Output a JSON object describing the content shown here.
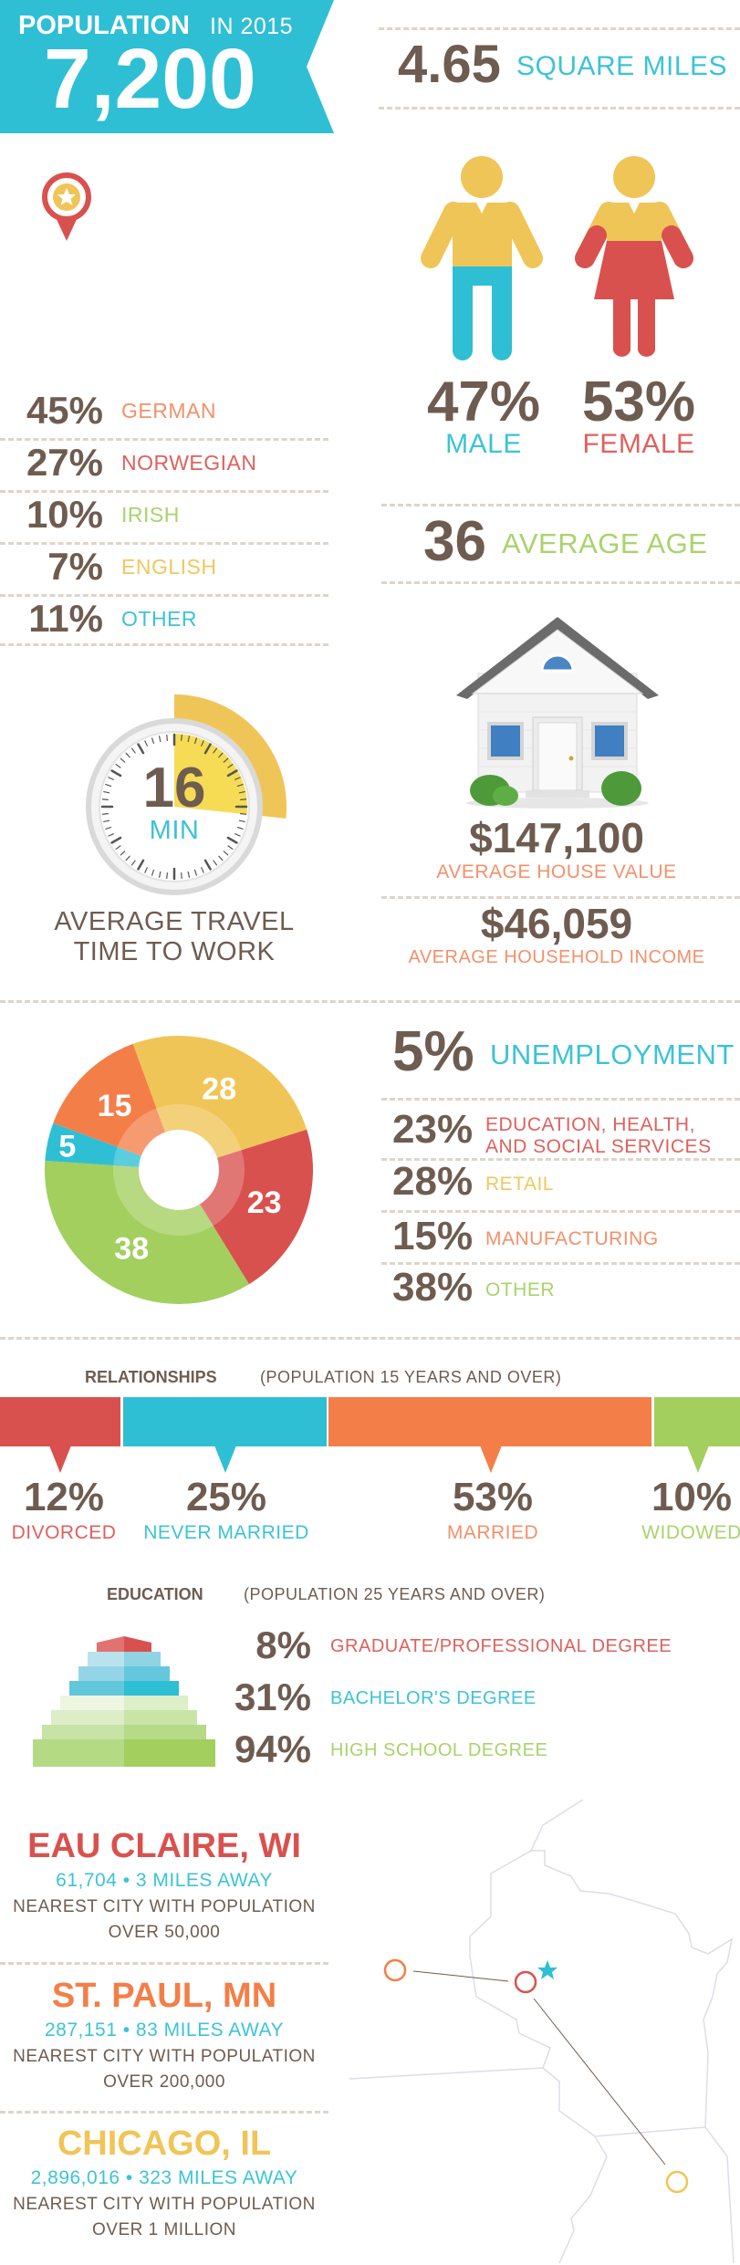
{
  "colors": {
    "cyan": "#2ebfd4",
    "red": "#d9514e",
    "orange": "#f47e48",
    "yellow": "#f0c557",
    "green": "#a2cf5e",
    "brown": "#6e5c50"
  },
  "header": {
    "population_label": "POPULATION",
    "year_label": "IN 2015",
    "population": "7,200"
  },
  "area": {
    "value": "4.65",
    "unit": "SQUARE MILES"
  },
  "gender": {
    "male_pct": "47%",
    "male_label": "MALE",
    "female_pct": "53%",
    "female_label": "FEMALE"
  },
  "ancestry": [
    {
      "pct": "45%",
      "label": "GERMAN",
      "color": "#f4906a"
    },
    {
      "pct": "27%",
      "label": "NORWEGIAN",
      "color": "#e0605c"
    },
    {
      "pct": "10%",
      "label": "IRISH",
      "color": "#a9d36b"
    },
    {
      "pct": "7%",
      "label": "ENGLISH",
      "color": "#f0c75e"
    },
    {
      "pct": "11%",
      "label": "OTHER",
      "color": "#3cc3d6"
    }
  ],
  "age": {
    "value": "36",
    "label": "AVERAGE AGE"
  },
  "travel": {
    "value": "16",
    "unit": "MIN",
    "minutes": 16,
    "label_line1": "AVERAGE TRAVEL",
    "label_line2": "TIME TO WORK"
  },
  "housing": {
    "house_value": "$147,100",
    "house_value_label": "AVERAGE HOUSE VALUE",
    "income": "$46,059",
    "income_label": "AVERAGE HOUSEHOLD INCOME"
  },
  "employment": {
    "unemployment_pct": "5%",
    "unemployment_label": "UNEMPLOYMENT",
    "industries": [
      {
        "pct": "23%",
        "label_line1": "EDUCATION, HEALTH,",
        "label_line2": "AND SOCIAL SERVICES",
        "color": "#e0605c"
      },
      {
        "pct": "28%",
        "label_line1": "RETAIL",
        "label_line2": "",
        "color": "#f0c75e"
      },
      {
        "pct": "15%",
        "label_line1": "MANUFACTURING",
        "label_line2": "",
        "color": "#f4906a"
      },
      {
        "pct": "38%",
        "label_line1": "OTHER",
        "label_line2": "",
        "color": "#a9d36b"
      }
    ]
  },
  "chart_data": {
    "type": "pie",
    "style": "donut",
    "categories": [
      "RETAIL",
      "EDUCATION, HEALTH, AND SOCIAL SERVICES",
      "OTHER",
      "UNEMPLOYMENT",
      "MANUFACTURING"
    ],
    "values": [
      28,
      23,
      38,
      5,
      15
    ],
    "labels": [
      "28",
      "23",
      "38",
      "5",
      "15"
    ],
    "colors": [
      "#f0c557",
      "#d9514e",
      "#a2cf5e",
      "#2ebfd4",
      "#f47e48"
    ]
  },
  "relationships": {
    "title": "RELATIONSHIPS",
    "subtitle": "(POPULATION 15 YEARS AND OVER)",
    "items": [
      {
        "pct": "12%",
        "label": "DIVORCED",
        "value": 12,
        "color": "#d9514e",
        "label_color": "#e0605c"
      },
      {
        "pct": "25%",
        "label": "NEVER MARRIED",
        "value": 25,
        "color": "#2ebfd4",
        "label_color": "#3cc3d6"
      },
      {
        "pct": "53%",
        "label": "MARRIED",
        "value": 53,
        "color": "#f47e48",
        "label_color": "#f4906a"
      },
      {
        "pct": "10%",
        "label": "WIDOWED",
        "value": 10,
        "color": "#a2cf5e",
        "label_color": "#a9d36b"
      }
    ]
  },
  "education": {
    "title": "EDUCATION",
    "subtitle": "(POPULATION 25 YEARS AND OVER)",
    "items": [
      {
        "pct": "8%",
        "label": "GRADUATE/PROFESSIONAL DEGREE",
        "color": "#e0605c"
      },
      {
        "pct": "31%",
        "label": "BACHELOR'S DEGREE",
        "color": "#3cc3d6"
      },
      {
        "pct": "94%",
        "label": "HIGH SCHOOL DEGREE",
        "color": "#a9d36b"
      }
    ]
  },
  "cities": [
    {
      "name": "EAU CLAIRE, WI",
      "stats": "61,704 • 3 MILES AWAY",
      "desc1": "NEAREST CITY WITH POPULATION",
      "desc2": "OVER 50,000",
      "color": "#d9514e"
    },
    {
      "name": "ST. PAUL, MN",
      "stats": "287,151 • 83 MILES AWAY",
      "desc1": "NEAREST CITY WITH POPULATION",
      "desc2": "OVER 200,000",
      "color": "#f47e48"
    },
    {
      "name": "CHICAGO, IL",
      "stats": "2,896,016 • 323 MILES AWAY",
      "desc1": "NEAREST CITY WITH POPULATION",
      "desc2": "OVER 1 MILLION",
      "color": "#f0c557"
    }
  ],
  "icons": {
    "pin": "map-pin-star-icon",
    "male": "male-figure-icon",
    "female": "female-figure-icon",
    "house": "house-icon",
    "stopwatch": "stopwatch-icon",
    "pyramid": "education-pyramid-icon",
    "map": "region-map"
  }
}
